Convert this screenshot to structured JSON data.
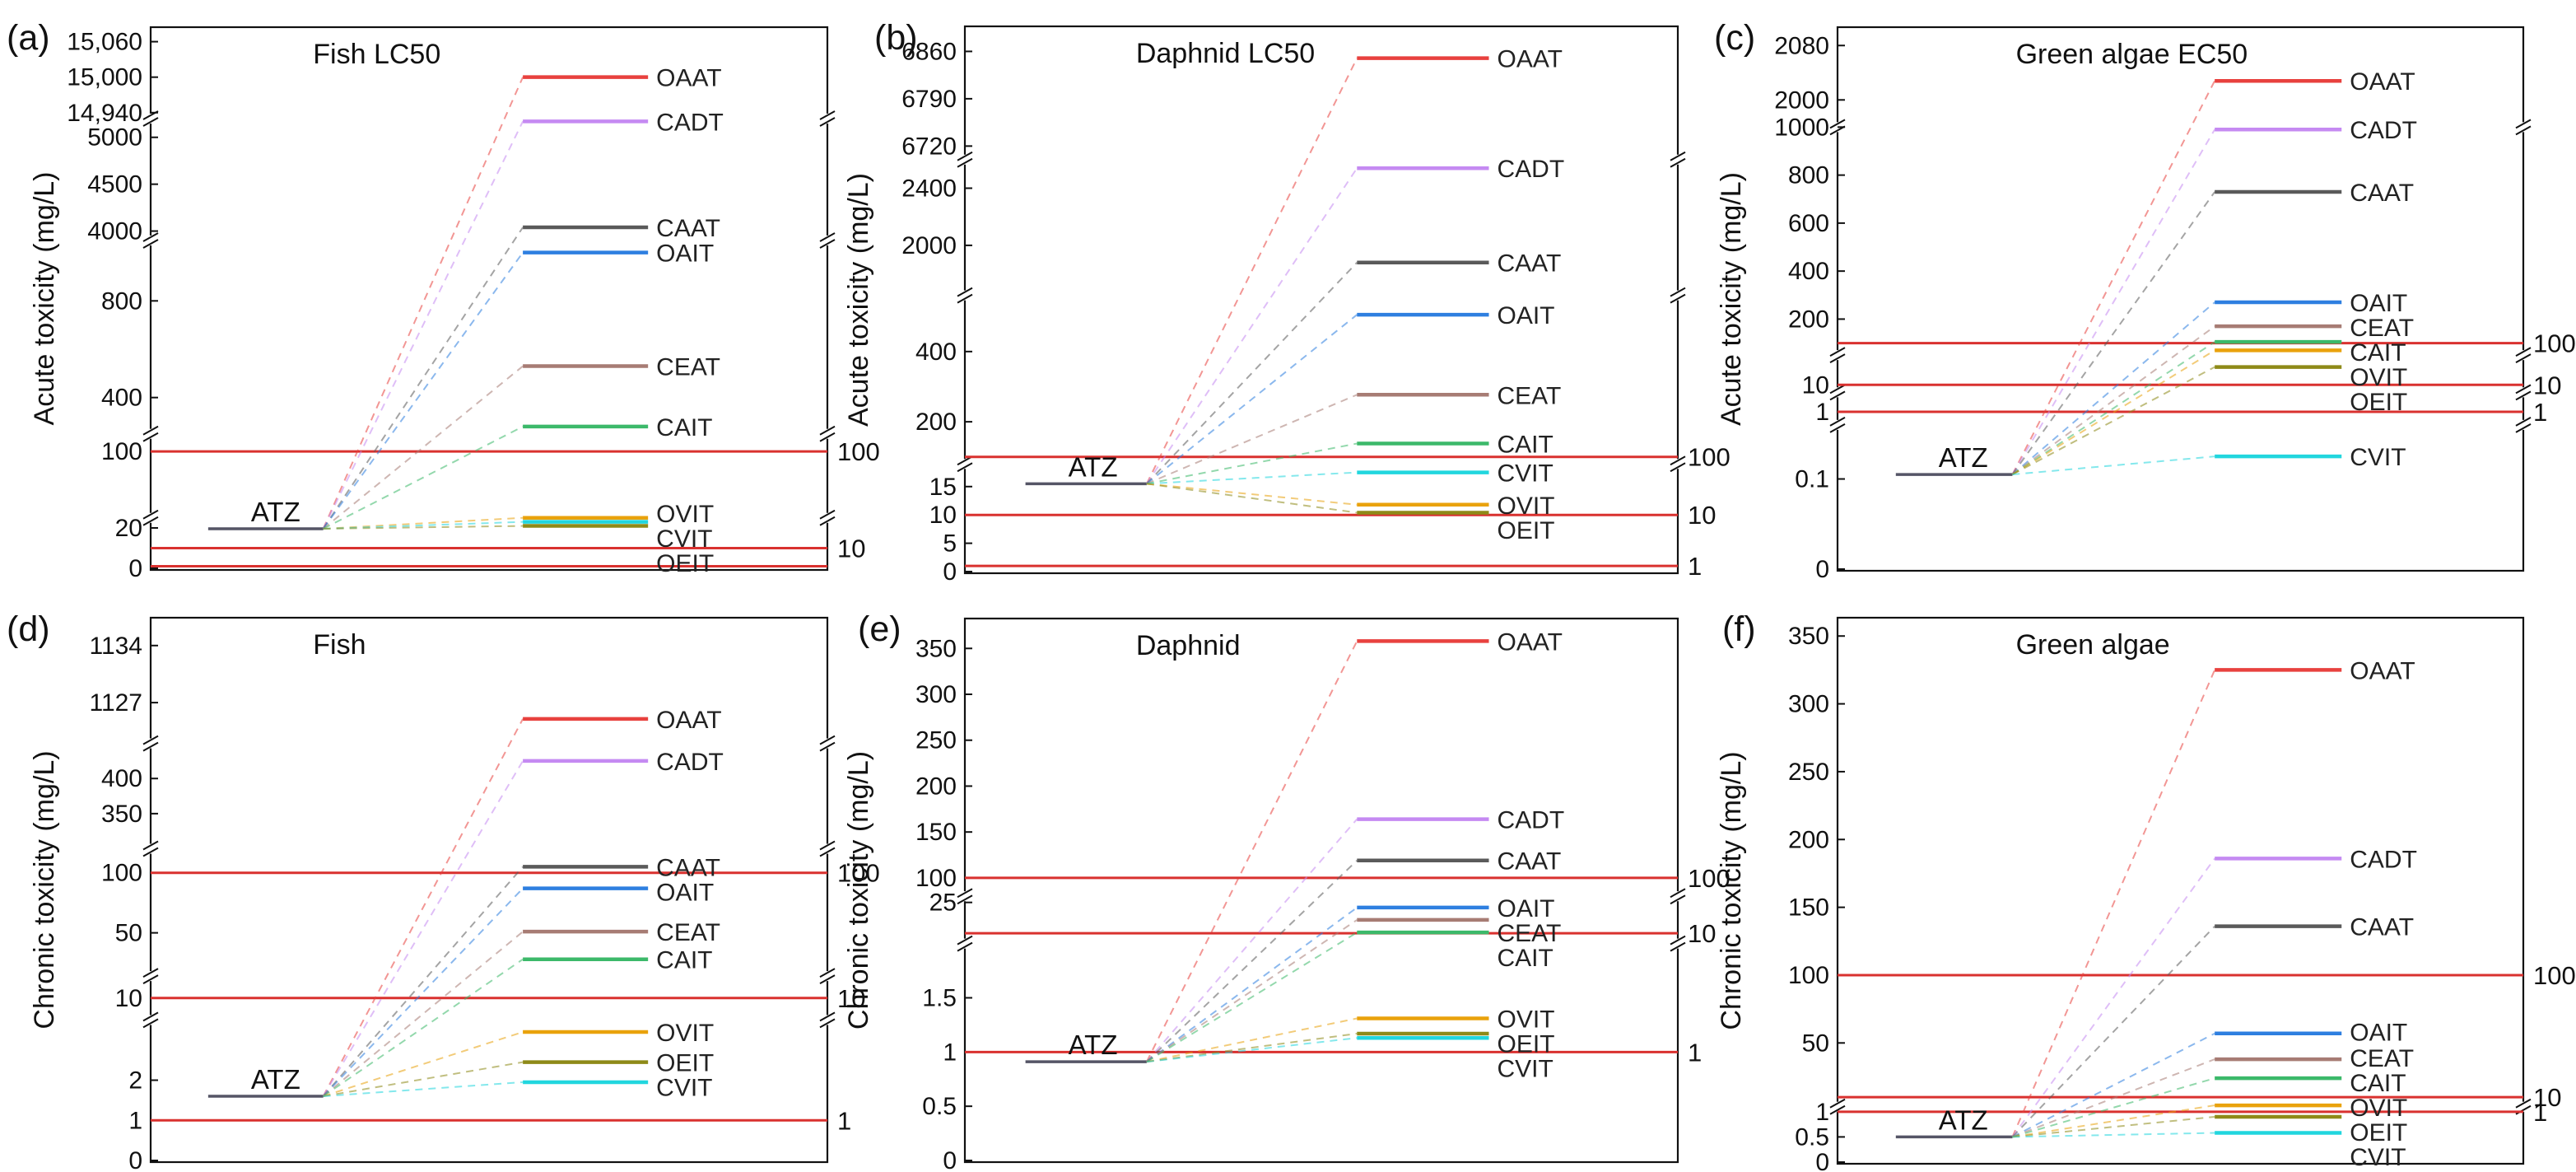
{
  "figure": {
    "colors": {
      "threshold": "#d9312f",
      "atz": "#555566",
      "frame": "#111111",
      "OAAT": "#e8413e",
      "CADT": "#c58af2",
      "CAAT": "#5a5a5a",
      "OAIT": "#2e7fe0",
      "CEAT": "#a77c74",
      "CAIT": "#3cb96a",
      "OVIT": "#e9a20c",
      "CVIT": "#21d6de",
      "OEIT": "#8e8a18"
    }
  },
  "chart_data": [
    {
      "type": "line",
      "panel_label": "(a)",
      "title": "Fish LC50",
      "ylabel": "Acute toxicity (mg/L)",
      "segments": [
        {
          "min": 0,
          "max": 25,
          "weight": 0.6,
          "ticks": [
            0,
            20
          ],
          "tick_labels": [
            "0",
            "20"
          ]
        },
        {
          "min": 25,
          "max": 120,
          "weight": 1.0,
          "ticks": [
            100
          ],
          "tick_labels": [
            "100"
          ]
        },
        {
          "min": 250,
          "max": 1050,
          "weight": 2.3,
          "ticks": [
            400,
            800
          ],
          "tick_labels": [
            "400",
            "800"
          ]
        },
        {
          "min": 3900,
          "max": 5200,
          "weight": 1.45,
          "ticks": [
            4000,
            4500,
            5000
          ],
          "tick_labels": [
            "4000",
            "4500",
            "5000"
          ]
        },
        {
          "min": 14930,
          "max": 15065,
          "weight": 0.95,
          "ticks": [
            14940,
            15000,
            15060
          ],
          "tick_labels": [
            "14,940",
            "15,000",
            "15,060"
          ]
        }
      ],
      "atz": {
        "label": "ATZ",
        "value": 19.6
      },
      "thresholds": [
        {
          "value": 1,
          "label": ""
        },
        {
          "value": 10,
          "label": "10"
        },
        {
          "value": 100,
          "label": "100"
        }
      ],
      "series": [
        {
          "name": "OAAT",
          "value": 15000
        },
        {
          "name": "CADT",
          "value": 5170
        },
        {
          "name": "CAAT",
          "value": 4040
        },
        {
          "name": "OAIT",
          "value": 1000
        },
        {
          "name": "CEAT",
          "value": 530
        },
        {
          "name": "CAIT",
          "value": 280
        },
        {
          "name": "OVIT",
          "value": 25
        },
        {
          "name": "CVIT",
          "value": 23
        },
        {
          "name": "OEIT",
          "value": 21
        }
      ],
      "label_order": [
        "OAAT",
        "CADT",
        "CAAT",
        "OAIT",
        "CEAT",
        "CAIT",
        "OVIT",
        "CVIT",
        "OEIT"
      ]
    },
    {
      "type": "line",
      "panel_label": "(b)",
      "title": "Daphnid LC50",
      "ylabel": "Acute toxicity (mg/L)",
      "segments": [
        {
          "min": 0,
          "max": 19,
          "weight": 1.15,
          "ticks": [
            0,
            5,
            10,
            15
          ],
          "tick_labels": [
            "0",
            "5",
            "10",
            "15"
          ]
        },
        {
          "min": 80,
          "max": 560,
          "weight": 1.8,
          "ticks": [
            200,
            400
          ],
          "tick_labels": [
            "200",
            "400"
          ]
        },
        {
          "min": 1650,
          "max": 2600,
          "weight": 1.45,
          "ticks": [
            2000,
            2400
          ],
          "tick_labels": [
            "2000",
            "2400"
          ]
        },
        {
          "min": 6700,
          "max": 6880,
          "weight": 1.3,
          "ticks": [
            6720,
            6790,
            6860
          ],
          "tick_labels": [
            "6720",
            "6790",
            "6860"
          ]
        }
      ],
      "atz": {
        "label": "ATZ",
        "value": 15.5
      },
      "thresholds": [
        {
          "value": 1,
          "label": "1"
        },
        {
          "value": 10,
          "label": "10"
        },
        {
          "value": 100,
          "label": "100"
        }
      ],
      "series": [
        {
          "name": "OAAT",
          "value": 6850
        },
        {
          "name": "CADT",
          "value": 2540
        },
        {
          "name": "CAAT",
          "value": 1880
        },
        {
          "name": "OAIT",
          "value": 505
        },
        {
          "name": "CEAT",
          "value": 277
        },
        {
          "name": "CAIT",
          "value": 138
        },
        {
          "name": "CVIT",
          "value": 17.5
        },
        {
          "name": "OVIT",
          "value": 11.8
        },
        {
          "name": "OEIT",
          "value": 10.4
        }
      ],
      "label_order": [
        "OAAT",
        "CADT",
        "CAAT",
        "OAIT",
        "CEAT",
        "CAIT",
        "CVIT",
        "OVIT",
        "OEIT"
      ]
    },
    {
      "type": "line",
      "panel_label": "(c)",
      "title": "Green algae EC50",
      "ylabel": "Acute toxicity (mg/L)",
      "segments": [
        {
          "min": 0,
          "max": 0.16,
          "weight": 1.55,
          "ticks": [
            0,
            0.1
          ],
          "tick_labels": [
            "0",
            "0.1"
          ]
        },
        {
          "min": 0.6,
          "max": 1.6,
          "weight": 0.35,
          "ticks": [
            1
          ],
          "tick_labels": [
            "1"
          ]
        },
        {
          "min": 5,
          "max": 30,
          "weight": 0.4,
          "ticks": [
            10
          ],
          "tick_labels": [
            "10"
          ]
        },
        {
          "min": 50,
          "max": 1000,
          "weight": 2.45,
          "ticks": [
            200,
            400,
            600,
            800,
            1000
          ],
          "tick_labels": [
            "200",
            "400",
            "600",
            "800",
            "1000"
          ]
        },
        {
          "min": 1960,
          "max": 2090,
          "weight": 0.95,
          "ticks": [
            2000,
            2080
          ],
          "tick_labels": [
            "2000",
            "2080"
          ]
        }
      ],
      "atz": {
        "label": "ATZ",
        "value": 0.105
      },
      "thresholds": [
        {
          "value": 1,
          "label": "1"
        },
        {
          "value": 10,
          "label": "10"
        },
        {
          "value": 100,
          "label": "100"
        }
      ],
      "series": [
        {
          "name": "OAAT",
          "value": 2028
        },
        {
          "name": "CADT",
          "value": 990
        },
        {
          "name": "CAAT",
          "value": 730
        },
        {
          "name": "OAIT",
          "value": 270
        },
        {
          "name": "CEAT",
          "value": 170
        },
        {
          "name": "CAIT",
          "value": 105
        },
        {
          "name": "OVIT",
          "value": 70
        },
        {
          "name": "OEIT",
          "value": 22
        },
        {
          "name": "CVIT",
          "value": 0.125
        }
      ],
      "label_order": [
        "OAAT",
        "CADT",
        "CAAT",
        "OAIT",
        "CEAT",
        "CAIT",
        "OVIT",
        "OEIT",
        "CVIT"
      ]
    },
    {
      "type": "line",
      "panel_label": "(d)",
      "title": "Fish",
      "ylabel": "Chronic toxicity (mg/L)",
      "segments": [
        {
          "min": 0,
          "max": 3.5,
          "weight": 1.6,
          "ticks": [
            0,
            1,
            2
          ],
          "tick_labels": [
            "0",
            "1",
            "2"
          ]
        },
        {
          "min": 6,
          "max": 14,
          "weight": 0.5,
          "ticks": [
            10
          ],
          "tick_labels": [
            "10"
          ]
        },
        {
          "min": 14,
          "max": 120,
          "weight": 1.45,
          "ticks": [
            50,
            100
          ],
          "tick_labels": [
            "50",
            "100"
          ]
        },
        {
          "min": 300,
          "max": 450,
          "weight": 1.2,
          "ticks": [
            350,
            400
          ],
          "tick_labels": [
            "350",
            "400"
          ]
        },
        {
          "min": 1122,
          "max": 1136,
          "weight": 1.3,
          "ticks": [
            1127,
            1134
          ],
          "tick_labels": [
            "1127",
            "1134"
          ]
        }
      ],
      "atz": {
        "label": "ATZ",
        "value": 1.6
      },
      "thresholds": [
        {
          "value": 1,
          "label": "1"
        },
        {
          "value": 10,
          "label": "10"
        },
        {
          "value": 100,
          "label": "100"
        }
      ],
      "series": [
        {
          "name": "OAAT",
          "value": 1125
        },
        {
          "name": "CADT",
          "value": 425
        },
        {
          "name": "CAAT",
          "value": 105
        },
        {
          "name": "OAIT",
          "value": 87
        },
        {
          "name": "CEAT",
          "value": 51
        },
        {
          "name": "CAIT",
          "value": 28
        },
        {
          "name": "OVIT",
          "value": 3.2
        },
        {
          "name": "OEIT",
          "value": 2.45
        },
        {
          "name": "CVIT",
          "value": 1.95
        }
      ],
      "label_order": [
        "OAAT",
        "CADT",
        "CAAT",
        "OAIT",
        "CEAT",
        "CAIT",
        "OVIT",
        "OEIT",
        "CVIT"
      ]
    },
    {
      "type": "line",
      "panel_label": "(e)",
      "title": "Daphnid",
      "ylabel": "Chronic toxicity (mg/L)",
      "segments": [
        {
          "min": 0,
          "max": 2,
          "weight": 2.2,
          "ticks": [
            0,
            0.5,
            1,
            1.5
          ],
          "tick_labels": [
            "0",
            "0.5",
            "1",
            "1.5"
          ]
        },
        {
          "min": 5,
          "max": 28,
          "weight": 0.48,
          "ticks": [
            25
          ],
          "tick_labels": [
            "25"
          ]
        },
        {
          "min": 80,
          "max": 370,
          "weight": 2.7,
          "ticks": [
            100,
            150,
            200,
            250,
            300,
            350
          ],
          "tick_labels": [
            "100",
            "150",
            "200",
            "250",
            "300",
            "350"
          ]
        }
      ],
      "atz": {
        "label": "ATZ",
        "value": 0.91
      },
      "thresholds": [
        {
          "value": 1,
          "label": "1"
        },
        {
          "value": 10,
          "label": "10"
        },
        {
          "value": 100,
          "label": "100"
        }
      ],
      "series": [
        {
          "name": "OAAT",
          "value": 358
        },
        {
          "name": "CADT",
          "value": 164
        },
        {
          "name": "CAAT",
          "value": 119
        },
        {
          "name": "OAIT",
          "value": 22.5
        },
        {
          "name": "CEAT",
          "value": 16.5
        },
        {
          "name": "CAIT",
          "value": 10.4
        },
        {
          "name": "OVIT",
          "value": 1.31
        },
        {
          "name": "OEIT",
          "value": 1.17
        },
        {
          "name": "CVIT",
          "value": 1.13
        }
      ],
      "label_order": [
        "OAAT",
        "CADT",
        "CAAT",
        "OAIT",
        "CEAT",
        "CAIT",
        "OVIT",
        "OEIT",
        "CVIT"
      ]
    },
    {
      "type": "line",
      "panel_label": "(f)",
      "title": "Green algae",
      "ylabel": "Chronic toxicity (mg/L)",
      "segments": [
        {
          "min": 0,
          "max": 1.1,
          "weight": 0.65,
          "ticks": [
            0,
            0.5,
            1
          ],
          "tick_labels": [
            "0",
            "0.5",
            "1"
          ]
        },
        {
          "min": 3,
          "max": 355,
          "weight": 5.6,
          "ticks": [
            50,
            100,
            150,
            200,
            250,
            300,
            350
          ],
          "tick_labels": [
            "50",
            "100",
            "150",
            "200",
            "250",
            "300",
            "350"
          ]
        }
      ],
      "atz": {
        "label": "ATZ",
        "value": 0.5
      },
      "thresholds": [
        {
          "value": 1,
          "label": "1"
        },
        {
          "value": 10,
          "label": "10"
        },
        {
          "value": 100,
          "label": "100"
        }
      ],
      "series": [
        {
          "name": "OAAT",
          "value": 325
        },
        {
          "name": "CADT",
          "value": 186
        },
        {
          "name": "CAAT",
          "value": 136
        },
        {
          "name": "OAIT",
          "value": 57
        },
        {
          "name": "CEAT",
          "value": 38
        },
        {
          "name": "CAIT",
          "value": 24
        },
        {
          "name": "OVIT",
          "value": 4
        },
        {
          "name": "OEIT",
          "value": 0.9
        },
        {
          "name": "CVIT",
          "value": 0.58
        }
      ],
      "label_order": [
        "OAAT",
        "CADT",
        "CAAT",
        "OAIT",
        "CEAT",
        "CAIT",
        "OVIT",
        "OEIT",
        "CVIT"
      ]
    }
  ]
}
